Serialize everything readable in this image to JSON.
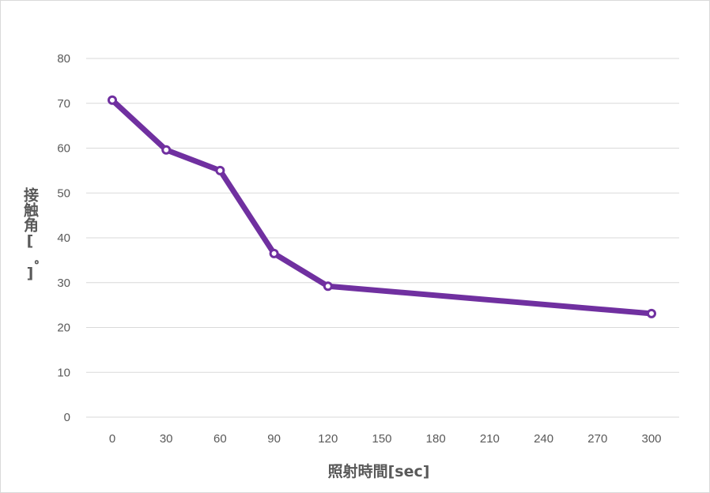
{
  "chart_data": {
    "type": "line",
    "title": "",
    "xlabel": "照射時間[sec]",
    "ylabel": "接触角[゜]",
    "x_ticks": [
      "0",
      "30",
      "60",
      "90",
      "120",
      "150",
      "180",
      "210",
      "240",
      "270",
      "300"
    ],
    "y_ticks": [
      "0",
      "10",
      "20",
      "30",
      "40",
      "50",
      "60",
      "70",
      "80"
    ],
    "xlim": [
      0,
      300
    ],
    "ylim": [
      0,
      80
    ],
    "grid": true,
    "legend": "none",
    "series": [
      {
        "color": "#7030a0",
        "marker": "circle",
        "points": [
          {
            "x": 0,
            "y": 70.7
          },
          {
            "x": 30,
            "y": 59.6
          },
          {
            "x": 60,
            "y": 55.0
          },
          {
            "x": 90,
            "y": 36.5
          },
          {
            "x": 120,
            "y": 29.2
          },
          {
            "x": 300,
            "y": 23.1
          }
        ]
      }
    ]
  }
}
